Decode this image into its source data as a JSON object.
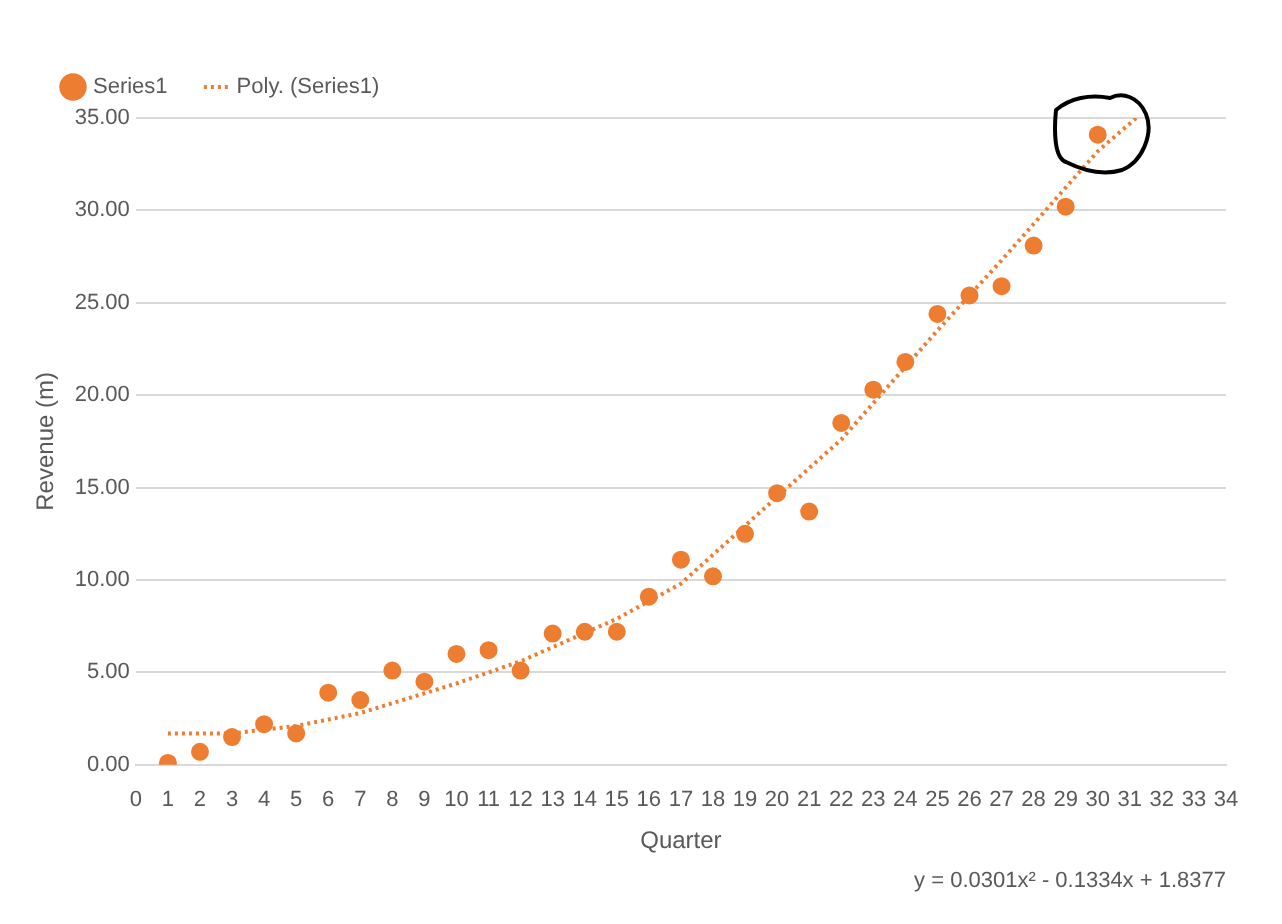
{
  "chart_data": {
    "type": "scatter",
    "xlabel": "Quarter",
    "ylabel": "Revenue (m)",
    "xlim": [
      0,
      34
    ],
    "xticks": [
      0,
      1,
      2,
      3,
      4,
      5,
      6,
      7,
      8,
      9,
      10,
      11,
      12,
      13,
      14,
      15,
      16,
      17,
      18,
      19,
      20,
      21,
      22,
      23,
      24,
      25,
      26,
      27,
      28,
      29,
      30,
      31,
      32,
      33,
      34
    ],
    "ylim": [
      0,
      35
    ],
    "yticks": [
      {
        "value": 0,
        "label": "0.00"
      },
      {
        "value": 5,
        "label": "5.00"
      },
      {
        "value": 10,
        "label": "10.00"
      },
      {
        "value": 15,
        "label": "15.00"
      },
      {
        "value": 20,
        "label": "20.00"
      },
      {
        "value": 25,
        "label": "25.00"
      },
      {
        "value": 30,
        "label": "30.00"
      },
      {
        "value": 35,
        "label": "35.00"
      }
    ],
    "grid": "y",
    "legend": "top left",
    "series": [
      {
        "name": "Series1",
        "type": "scatter",
        "color": "#ed7d31",
        "marker": "circle",
        "x": [
          1,
          2,
          3,
          4,
          5,
          6,
          7,
          8,
          9,
          10,
          11,
          12,
          13,
          14,
          15,
          16,
          17,
          18,
          19,
          20,
          21,
          22,
          23,
          24,
          25,
          26,
          27,
          28,
          29,
          30
        ],
        "values": [
          0.1,
          0.7,
          1.5,
          2.2,
          1.7,
          3.9,
          3.5,
          5.1,
          4.5,
          6.0,
          6.2,
          5.1,
          7.1,
          7.2,
          7.2,
          9.1,
          11.1,
          10.2,
          12.5,
          14.7,
          13.7,
          18.5,
          20.3,
          21.8,
          24.4,
          25.4,
          25.9,
          28.1,
          30.2,
          34.1
        ]
      },
      {
        "name": "Poly. (Series1)",
        "type": "line",
        "color": "#ed7d31",
        "line_style": "dotted",
        "marker": "none",
        "x": [
          1,
          3,
          5,
          7,
          10,
          12,
          15,
          17,
          20,
          22,
          25,
          27,
          30,
          31.2
        ],
        "values": [
          1.7,
          1.7,
          2.1,
          2.8,
          4.4,
          5.6,
          7.9,
          9.8,
          14.5,
          17.6,
          23.5,
          27.3,
          33.2,
          35.0
        ]
      }
    ],
    "annotations": [
      "y = 0.0301x² - 0.1334x + 1.8377"
    ]
  }
}
